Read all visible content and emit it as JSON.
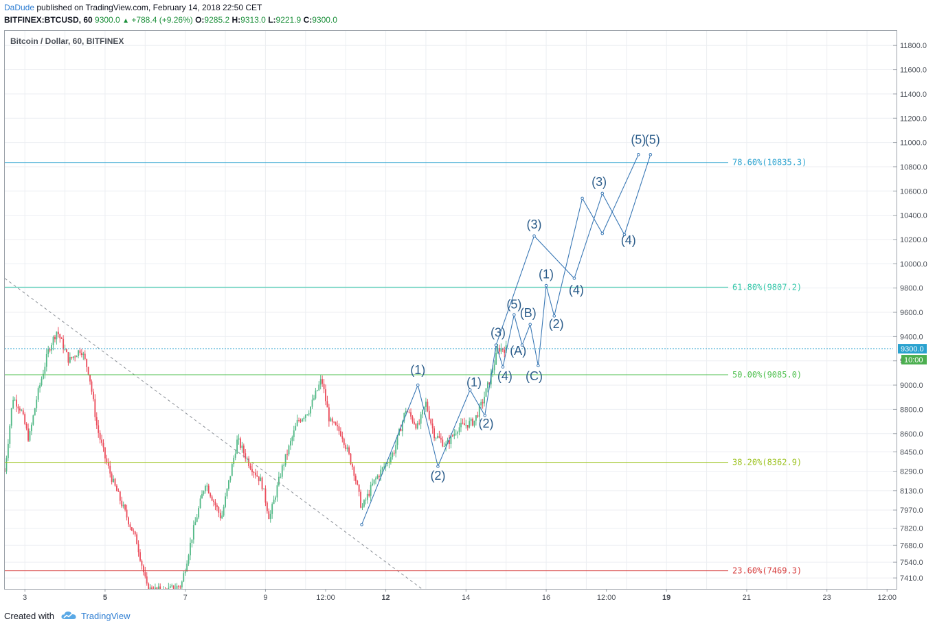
{
  "header": {
    "author": "DaDude",
    "published_text": "published on TradingView.com, February 14, 2018 22:50 CET",
    "symbol_line": "BITFINEX:BTCUSD, 60",
    "last": "9300.0",
    "change": "+788.4 (+9.26%)",
    "open_label": "O:",
    "open": "9285.2",
    "high_label": "H:",
    "high": "9313.0",
    "low_label": "L:",
    "low": "9221.9",
    "close_label": "C:",
    "close": "9300.0"
  },
  "chart_title": "Bitcoin / Dollar, 60, BITFINEX",
  "footer": {
    "created_with": "Created with",
    "brand": "TradingView"
  },
  "colors": {
    "up": "#53b987",
    "down": "#eb4d5c",
    "wave": "#3a78b5",
    "wave_label": "#2b5c8a",
    "fib_786": "#2aa2cf",
    "fib_618": "#31c6a8",
    "fib_500": "#4cbf4c",
    "fib_382": "#9cc21f",
    "fib_236": "#d63c3c",
    "price_label_bg": "#2aa2cf",
    "time_label_bg": "#4caf50"
  },
  "chart_data": {
    "type": "candlestick",
    "title": "Bitcoin / Dollar, 60, BITFINEX",
    "ylim": [
      7320,
      11920
    ],
    "y_ticks": [
      7410,
      7540,
      7680,
      7820,
      7970,
      8130,
      8290,
      8450,
      8600,
      8800,
      9000,
      9200,
      9400,
      9600,
      9800,
      10000,
      10200,
      10400,
      10600,
      10800,
      11000,
      11200,
      11400,
      11600,
      11800
    ],
    "y_tick_labels": [
      "7410.0",
      "7540.0",
      "7680.0",
      "7820.0",
      "7970.0",
      "8130.0",
      "8290.0",
      "8450.0",
      "8600.0",
      "8800.0",
      "9000.0",
      "9200.0",
      "9400.0",
      "9600.0",
      "9800.0",
      "10000.0",
      "10200.0",
      "10400.0",
      "10600.0",
      "10800.0",
      "11000.0",
      "11200.0",
      "11400.0",
      "11600.0",
      "11800.0"
    ],
    "x_tick_labels": [
      {
        "t": 1.0,
        "label": "3",
        "bold": false
      },
      {
        "t": 3.0,
        "label": "5",
        "bold": true
      },
      {
        "t": 5.0,
        "label": "7",
        "bold": false
      },
      {
        "t": 7.0,
        "label": "9",
        "bold": false
      },
      {
        "t": 8.5,
        "label": "12:00",
        "bold": false
      },
      {
        "t": 10.0,
        "label": "12",
        "bold": true
      },
      {
        "t": 12.0,
        "label": "14",
        "bold": false
      },
      {
        "t": 14.0,
        "label": "16",
        "bold": false
      },
      {
        "t": 15.5,
        "label": "12:00",
        "bold": false
      },
      {
        "t": 17.0,
        "label": "19",
        "bold": true
      },
      {
        "t": 19.0,
        "label": "21",
        "bold": false
      },
      {
        "t": 21.0,
        "label": "23",
        "bold": false
      },
      {
        "t": 22.5,
        "label": "12:00",
        "bold": false
      }
    ],
    "x_range": [
      0.5,
      22.65
    ],
    "last_price": 9300.0,
    "last_price_label": "9300.0",
    "countdown_label": "10:00",
    "fib_levels": [
      {
        "pct": "78.60%",
        "value": 10835.3,
        "label": "78.60%(10835.3)",
        "color_key": "fib_786"
      },
      {
        "pct": "61.80%",
        "value": 9807.2,
        "label": "61.80%(9807.2)",
        "color_key": "fib_618"
      },
      {
        "pct": "50.00%",
        "value": 9085.0,
        "label": "50.00%(9085.0)",
        "color_key": "fib_500"
      },
      {
        "pct": "38.20%",
        "value": 8362.9,
        "label": "38.20%(8362.9)",
        "color_key": "fib_382"
      },
      {
        "pct": "23.60%",
        "value": 7469.3,
        "label": "23.60%(7469.3)",
        "color_key": "fib_236"
      }
    ],
    "trendline": {
      "style": "dashed",
      "points": [
        [
          0.5,
          9880
        ],
        [
          10.9,
          7320
        ]
      ]
    },
    "price_path": [
      [
        0.5,
        8290
      ],
      [
        0.7,
        8900
      ],
      [
        0.9,
        8800
      ],
      [
        1.1,
        8550
      ],
      [
        1.3,
        8900
      ],
      [
        1.6,
        9300
      ],
      [
        1.8,
        9450
      ],
      [
        2.1,
        9200
      ],
      [
        2.4,
        9300
      ],
      [
        2.6,
        9100
      ],
      [
        2.8,
        8650
      ],
      [
        3.0,
        8400
      ],
      [
        3.2,
        8200
      ],
      [
        3.5,
        7950
      ],
      [
        3.8,
        7700
      ],
      [
        4.05,
        7320
      ],
      [
        4.5,
        7300
      ],
      [
        4.9,
        7350
      ],
      [
        5.2,
        7800
      ],
      [
        5.5,
        8200
      ],
      [
        5.9,
        7900
      ],
      [
        6.3,
        8550
      ],
      [
        6.6,
        8350
      ],
      [
        6.9,
        8200
      ],
      [
        7.1,
        7900
      ],
      [
        7.4,
        8300
      ],
      [
        7.8,
        8700
      ],
      [
        8.1,
        8800
      ],
      [
        8.4,
        9050
      ],
      [
        8.6,
        8700
      ],
      [
        8.9,
        8600
      ],
      [
        9.2,
        8300
      ],
      [
        9.4,
        7980
      ],
      [
        9.7,
        8200
      ],
      [
        10.0,
        8350
      ],
      [
        10.2,
        8450
      ],
      [
        10.5,
        8800
      ],
      [
        10.8,
        8650
      ],
      [
        11.0,
        8850
      ],
      [
        11.2,
        8600
      ],
      [
        11.5,
        8500
      ],
      [
        11.8,
        8650
      ],
      [
        12.2,
        8700
      ],
      [
        12.4,
        8850
      ],
      [
        12.6,
        9050
      ],
      [
        12.8,
        9300
      ],
      [
        13.0,
        9300
      ]
    ],
    "wave_count": {
      "lines": [
        {
          "points": [
            [
              9.4,
              7850
            ],
            [
              10.8,
              9000
            ],
            [
              11.3,
              8330
            ],
            [
              12.1,
              8960
            ],
            [
              12.47,
              8750
            ],
            [
              12.75,
              9330
            ],
            [
              12.92,
              9150
            ],
            [
              13.2,
              9580
            ],
            [
              13.4,
              9330
            ],
            [
              13.6,
              9500
            ],
            [
              13.8,
              9160
            ],
            [
              14.0,
              9820
            ],
            [
              14.2,
              9570
            ],
            [
              14.9,
              10540
            ],
            [
              15.4,
              10250
            ],
            [
              16.3,
              10900
            ]
          ]
        },
        {
          "points": [
            [
              12.75,
              9330
            ],
            [
              13.7,
              10230
            ],
            [
              14.7,
              9880
            ],
            [
              15.4,
              10580
            ],
            [
              15.95,
              10240
            ],
            [
              16.6,
              10900
            ]
          ]
        }
      ],
      "labels": [
        {
          "text": "(1)",
          "at": [
            10.8,
            9090
          ]
        },
        {
          "text": "(2)",
          "at": [
            11.3,
            8220
          ]
        },
        {
          "text": "(1)",
          "at": [
            12.2,
            8990
          ]
        },
        {
          "text": "(2)",
          "at": [
            12.5,
            8650
          ]
        },
        {
          "text": "(3)",
          "at": [
            12.8,
            9400
          ]
        },
        {
          "text": "(4)",
          "at": [
            12.97,
            9040
          ]
        },
        {
          "text": "(5)",
          "at": [
            13.2,
            9630
          ]
        },
        {
          "text": "(A)",
          "at": [
            13.3,
            9250
          ]
        },
        {
          "text": "(B)",
          "at": [
            13.55,
            9560
          ]
        },
        {
          "text": "(C)",
          "at": [
            13.7,
            9040
          ]
        },
        {
          "text": "(1)",
          "at": [
            14.0,
            9880
          ]
        },
        {
          "text": "(2)",
          "at": [
            14.25,
            9470
          ]
        },
        {
          "text": "(3)",
          "at": [
            13.7,
            10290
          ]
        },
        {
          "text": "(4)",
          "at": [
            14.75,
            9750
          ]
        },
        {
          "text": "(3)",
          "at": [
            15.32,
            10640
          ]
        },
        {
          "text": "(4)",
          "at": [
            16.05,
            10160
          ]
        },
        {
          "text": "(5)",
          "at": [
            16.3,
            10990
          ]
        },
        {
          "text": "(5)",
          "at": [
            16.65,
            10990
          ]
        }
      ]
    }
  }
}
